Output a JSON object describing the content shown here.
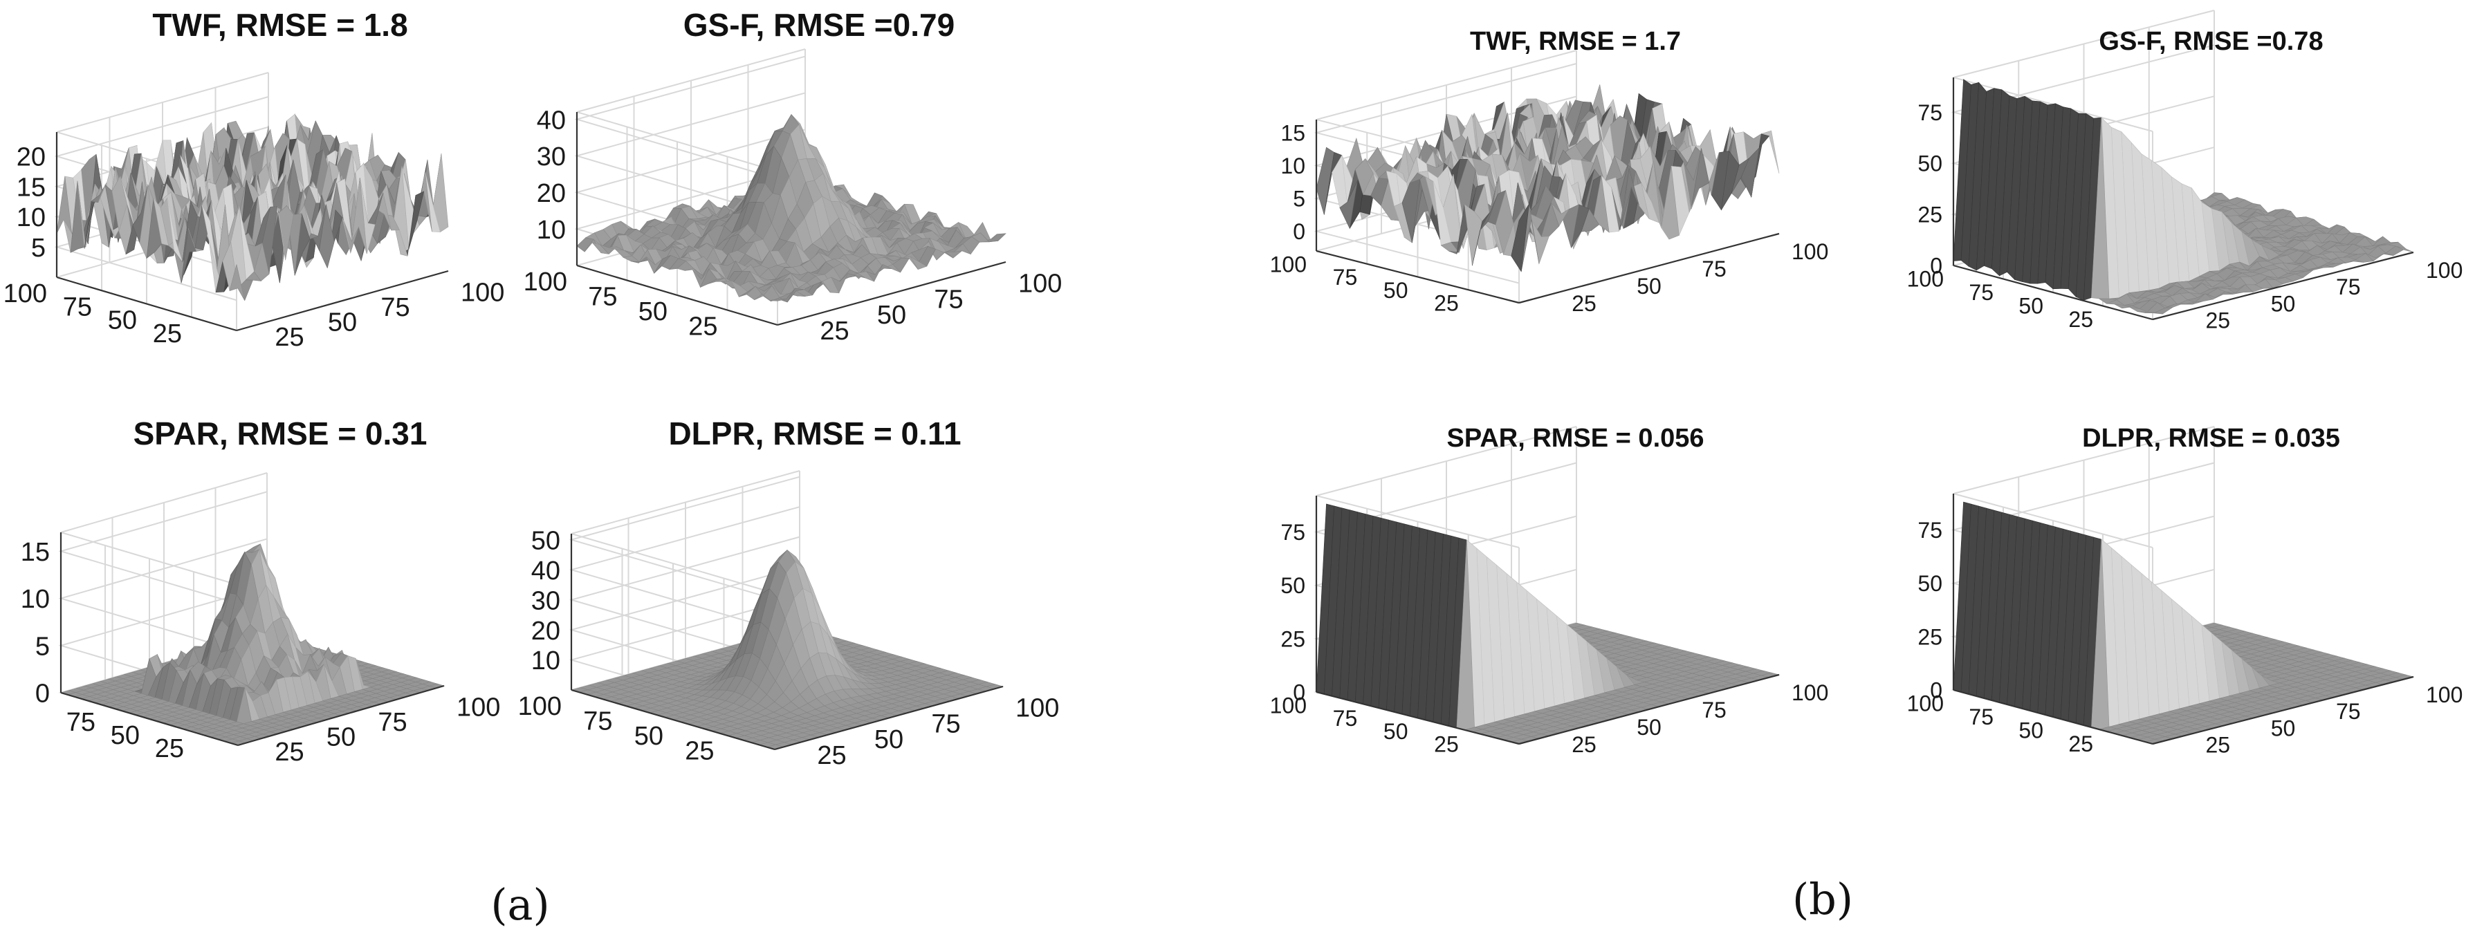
{
  "figure": {
    "panel_labels": [
      "(a)",
      "(b)"
    ]
  },
  "chart_data": [
    {
      "type": "surface",
      "title": "TWF, RMSE = 1.8",
      "group": "(a)",
      "surface": "noise",
      "zticks": [
        5,
        10,
        15,
        20
      ],
      "zlim": [
        0,
        24
      ],
      "xticks": [
        25,
        50,
        75,
        100
      ],
      "yticks": [
        25,
        50,
        75,
        100
      ],
      "xlim": [
        0,
        100
      ],
      "ylim": [
        0,
        100
      ],
      "grid": true
    },
    {
      "type": "surface",
      "title": "GS-F, RMSE =0.79",
      "group": "(a)",
      "surface": "gaussian-noisy",
      "zticks": [
        10,
        20,
        30,
        40
      ],
      "zlim": [
        0,
        42
      ],
      "xticks": [
        25,
        50,
        75,
        100
      ],
      "yticks": [
        25,
        50,
        75,
        100
      ],
      "xlim": [
        0,
        100
      ],
      "ylim": [
        0,
        100
      ],
      "grid": true
    },
    {
      "type": "surface",
      "title": "SPAR, RMSE = 0.31",
      "group": "(a)",
      "surface": "spar",
      "zticks": [
        0,
        5,
        10,
        15
      ],
      "zlim": [
        0,
        17
      ],
      "xticks": [
        25,
        50,
        75,
        100
      ],
      "yticks": [
        25,
        50,
        75
      ],
      "xlim": [
        0,
        100
      ],
      "ylim": [
        0,
        100
      ],
      "grid": true
    },
    {
      "type": "surface",
      "title": "DLPR, RMSE = 0.11",
      "group": "(a)",
      "surface": "gaussian",
      "zticks": [
        10,
        20,
        30,
        40,
        50
      ],
      "zlim": [
        0,
        52
      ],
      "xticks": [
        25,
        50,
        75,
        100
      ],
      "yticks": [
        25,
        50,
        75,
        100
      ],
      "xlim": [
        0,
        100
      ],
      "ylim": [
        0,
        100
      ],
      "grid": true
    },
    {
      "type": "surface",
      "title": "TWF, RMSE = 1.7",
      "group": "(b)",
      "surface": "noise",
      "zticks": [
        0,
        5,
        10,
        15
      ],
      "zlim": [
        -3,
        17
      ],
      "xticks": [
        25,
        50,
        75,
        100
      ],
      "yticks": [
        25,
        50,
        75,
        100
      ],
      "xlim": [
        0,
        100
      ],
      "ylim": [
        0,
        100
      ],
      "grid": true
    },
    {
      "type": "surface",
      "title": "GS-F, RMSE =0.78",
      "group": "(b)",
      "surface": "wedge-noisy",
      "zticks": [
        0,
        25,
        50,
        75
      ],
      "zlim": [
        0,
        92
      ],
      "xticks": [
        25,
        50,
        75,
        100
      ],
      "yticks": [
        25,
        50,
        75,
        100
      ],
      "xlim": [
        0,
        100
      ],
      "ylim": [
        0,
        100
      ],
      "grid": true
    },
    {
      "type": "surface",
      "title": "SPAR, RMSE = 0.056",
      "group": "(b)",
      "surface": "wedge",
      "zticks": [
        0,
        25,
        50,
        75
      ],
      "zlim": [
        0,
        92
      ],
      "xticks": [
        25,
        50,
        75,
        100
      ],
      "yticks": [
        25,
        50,
        75,
        100
      ],
      "xlim": [
        0,
        100
      ],
      "ylim": [
        0,
        100
      ],
      "grid": true
    },
    {
      "type": "surface",
      "title": "DLPR, RMSE = 0.035",
      "group": "(b)",
      "surface": "wedge",
      "zticks": [
        0,
        25,
        50,
        75
      ],
      "zlim": [
        0,
        92
      ],
      "xticks": [
        25,
        50,
        75,
        100
      ],
      "yticks": [
        25,
        50,
        75,
        100
      ],
      "xlim": [
        0,
        100
      ],
      "ylim": [
        0,
        100
      ],
      "grid": true
    }
  ]
}
